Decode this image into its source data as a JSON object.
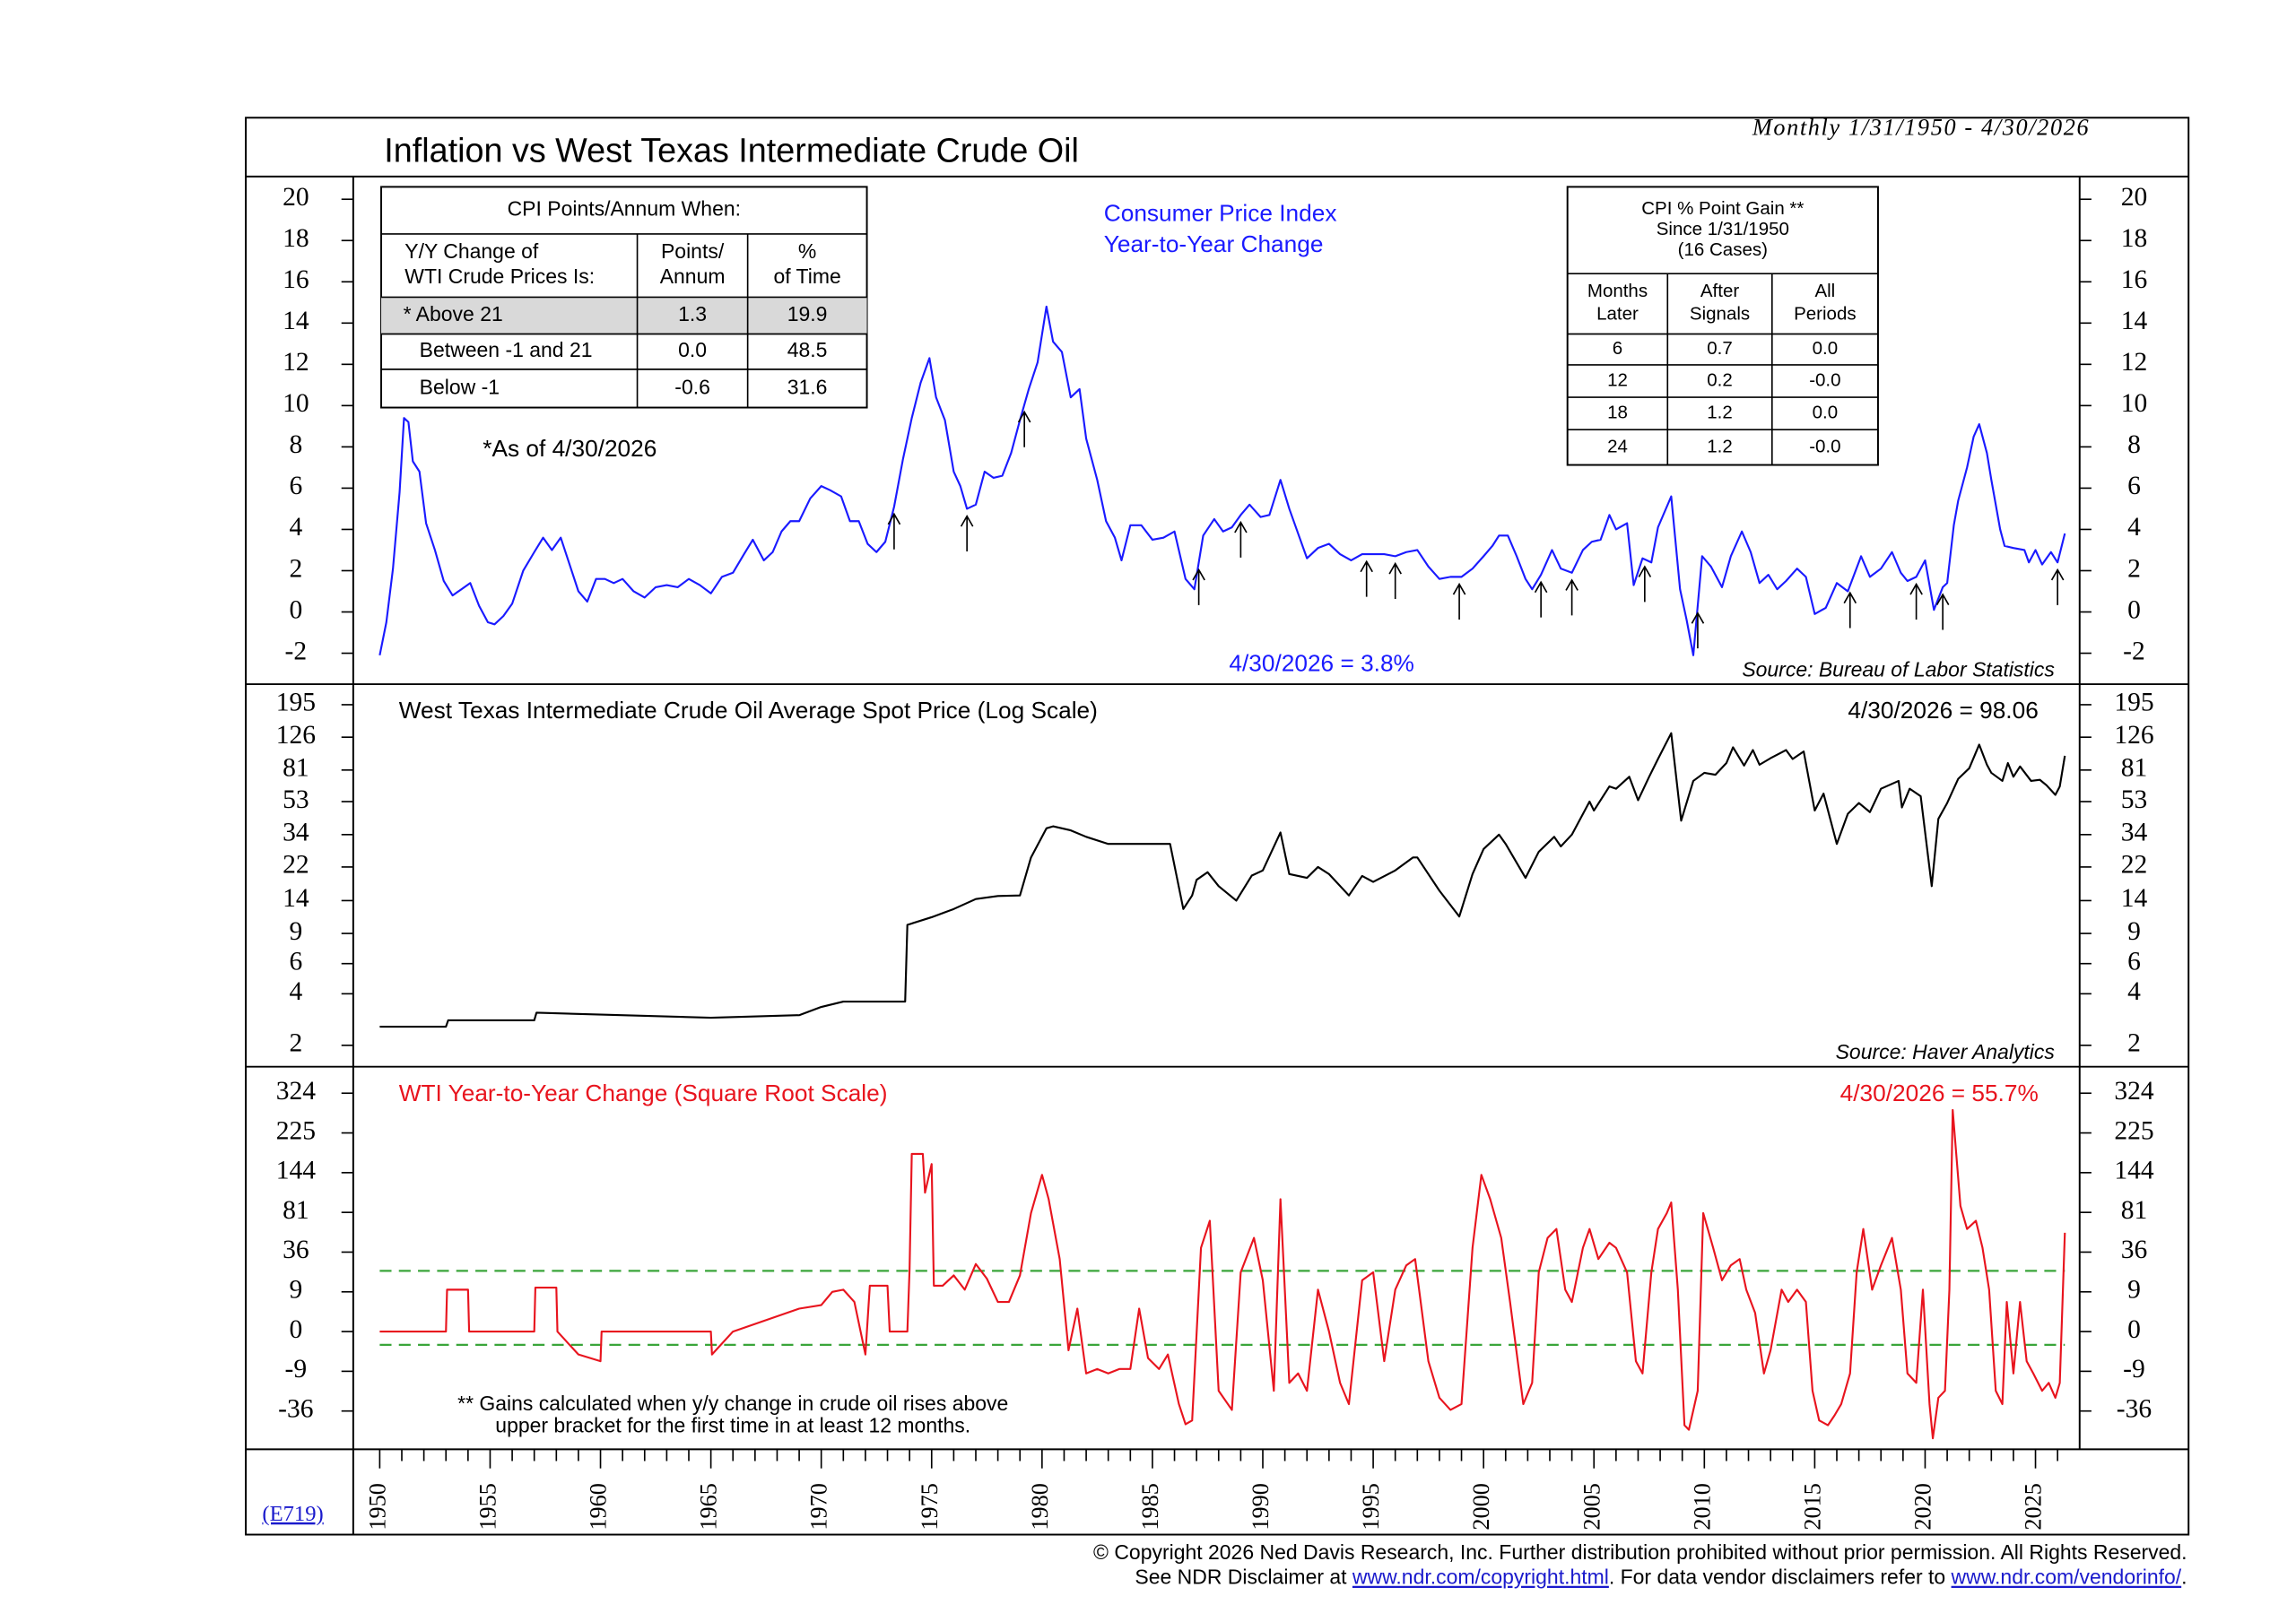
{
  "title": "Inflation vs West Texas Intermediate Crude Oil",
  "subtitle": "Monthly 1/31/1950 - 4/30/2026",
  "code": "(E719)",
  "copyright": "© Copyright 2026 Ned Davis Research, Inc.  Further distribution prohibited without prior permission.  All Rights Reserved.",
  "disclaimer": [
    "See NDR Disclaimer at ",
    "www.ndr.com/copyright.html",
    ". For data vendor disclaimers refer to ",
    "www.ndr.com/vendorinfo/",
    "."
  ],
  "tables": [
    {
      "title": [
        "CPI Points/Annum When:"
      ],
      "header": [
        [
          "Y/Y Change of",
          "WTI Crude Prices Is:"
        ],
        [
          "Points/",
          "Annum"
        ],
        [
          "%",
          "of Time"
        ]
      ],
      "rows": [
        [
          "* Above 21",
          "1.3",
          "19.9"
        ],
        [
          "Between -1 and 21",
          "0.0",
          "48.5"
        ],
        [
          "Below -1",
          "-0.6",
          "31.6"
        ]
      ],
      "highlight_row": 0
    },
    {
      "title": [
        "CPI % Point Gain **",
        "Since 1/31/1950",
        "(16 Cases)"
      ],
      "header": [
        [
          "Months",
          "Later"
        ],
        [
          "After",
          "Signals"
        ],
        [
          "All",
          "Periods"
        ]
      ],
      "rows": [
        [
          "6",
          "0.7",
          "0.0"
        ],
        [
          "12",
          "0.2",
          "-0.0"
        ],
        [
          "18",
          "1.2",
          "0.0"
        ],
        [
          "24",
          "1.2",
          "-0.0"
        ]
      ]
    }
  ],
  "chart_data": [
    {
      "type": "line",
      "scale": "linear",
      "title": [
        "Consumer Price Index",
        "Year-to-Year Change"
      ],
      "color": "#1a1aff",
      "note": "*As of 4/30/2026",
      "latest": "4/30/2026 = 3.8%",
      "source": "Source: Bureau of Labor Statistics",
      "xlim": [
        1948.8,
        2027
      ],
      "ylim": [
        -3.5,
        21.1
      ],
      "yticks": [
        -2,
        0,
        2,
        4,
        6,
        8,
        10,
        12,
        14,
        16,
        18,
        20
      ],
      "signals": [
        1973.3,
        1976.6,
        1979.2,
        1987.1,
        1989.0,
        1994.7,
        1996.0,
        1998.9,
        2002.6,
        2004.0,
        2007.3,
        2009.7,
        2016.6,
        2019.6,
        2020.8,
        2026.0
      ],
      "x": [
        1950,
        1950.3,
        1950.6,
        1950.9,
        1951.1,
        1951.3,
        1951.5,
        1951.8,
        1952.1,
        1952.5,
        1952.9,
        1953.3,
        1953.7,
        1954.1,
        1954.5,
        1954.9,
        1955.2,
        1955.6,
        1956,
        1956.5,
        1957,
        1957.4,
        1957.8,
        1958.2,
        1958.6,
        1959,
        1959.4,
        1959.8,
        1960.2,
        1960.6,
        1961,
        1961.5,
        1962,
        1962.5,
        1963,
        1963.5,
        1964,
        1964.5,
        1965,
        1965.5,
        1966,
        1966.5,
        1966.9,
        1967.4,
        1967.8,
        1968.2,
        1968.6,
        1969,
        1969.5,
        1970,
        1970.4,
        1970.9,
        1971.3,
        1971.7,
        1972.1,
        1972.5,
        1972.9,
        1973.3,
        1973.7,
        1974.1,
        1974.5,
        1974.9,
        1975.2,
        1975.6,
        1976,
        1976.3,
        1976.6,
        1977,
        1977.4,
        1977.8,
        1978.2,
        1978.6,
        1979,
        1979.4,
        1979.8,
        1980.2,
        1980.5,
        1980.9,
        1981.3,
        1981.7,
        1982,
        1982.5,
        1982.9,
        1983.3,
        1983.6,
        1984,
        1984.5,
        1985,
        1985.5,
        1986,
        1986.5,
        1986.9,
        1987.3,
        1987.8,
        1988.2,
        1988.6,
        1989,
        1989.4,
        1989.9,
        1990.3,
        1990.8,
        1991.2,
        1991.6,
        1992,
        1992.5,
        1993,
        1993.5,
        1994,
        1994.5,
        1995,
        1995.5,
        1996,
        1996.5,
        1997,
        1997.5,
        1998,
        1998.5,
        1999,
        1999.5,
        2000,
        2000.4,
        2000.7,
        2001.1,
        2001.5,
        2001.9,
        2002.2,
        2002.6,
        2003.1,
        2003.5,
        2004,
        2004.5,
        2004.9,
        2005.3,
        2005.7,
        2006,
        2006.5,
        2006.8,
        2007.2,
        2007.6,
        2007.9,
        2008.5,
        2008.9,
        2009.2,
        2009.5,
        2009.9,
        2010.3,
        2010.8,
        2011.2,
        2011.7,
        2012.1,
        2012.5,
        2012.9,
        2013.3,
        2013.7,
        2014.2,
        2014.6,
        2015,
        2015.5,
        2016,
        2016.5,
        2017.1,
        2017.5,
        2018,
        2018.5,
        2018.9,
        2019.2,
        2019.6,
        2020,
        2020.4,
        2020.8,
        2021,
        2021.3,
        2021.5,
        2021.9,
        2022.2,
        2022.45,
        2022.8,
        2023,
        2023.4,
        2023.6,
        2024,
        2024.5,
        2024.7,
        2025,
        2025.3,
        2025.7,
        2026,
        2026.33
      ],
      "values": [
        -2.1,
        -0.5,
        2.1,
        5.8,
        9.4,
        9.2,
        7.3,
        6.8,
        4.3,
        3.0,
        1.5,
        0.8,
        1.1,
        1.4,
        0.3,
        -0.5,
        -0.6,
        -0.2,
        0.4,
        2.0,
        2.9,
        3.6,
        3.0,
        3.6,
        2.3,
        1.0,
        0.5,
        1.6,
        1.6,
        1.4,
        1.6,
        1.0,
        0.7,
        1.2,
        1.3,
        1.2,
        1.6,
        1.3,
        0.9,
        1.7,
        1.9,
        2.8,
        3.5,
        2.5,
        2.9,
        3.9,
        4.4,
        4.4,
        5.5,
        6.1,
        5.9,
        5.6,
        4.4,
        4.4,
        3.3,
        2.9,
        3.4,
        5.1,
        7.4,
        9.4,
        11.1,
        12.3,
        10.4,
        9.3,
        6.8,
        6.1,
        5.0,
        5.2,
        6.8,
        6.5,
        6.6,
        7.7,
        9.3,
        10.8,
        12.1,
        14.8,
        13.1,
        12.6,
        10.4,
        10.8,
        8.4,
        6.4,
        4.4,
        3.6,
        2.5,
        4.2,
        4.2,
        3.5,
        3.6,
        3.9,
        1.6,
        1.1,
        3.7,
        4.5,
        3.9,
        4.1,
        4.7,
        5.2,
        4.6,
        4.7,
        6.4,
        5.0,
        3.8,
        2.6,
        3.1,
        3.3,
        2.8,
        2.5,
        2.8,
        2.8,
        2.8,
        2.7,
        2.9,
        3.0,
        2.2,
        1.6,
        1.7,
        1.7,
        2.1,
        2.7,
        3.2,
        3.7,
        3.7,
        2.7,
        1.6,
        1.1,
        1.8,
        3.0,
        2.1,
        1.9,
        3.0,
        3.4,
        3.5,
        4.7,
        4.0,
        4.3,
        1.3,
        2.6,
        2.4,
        4.1,
        5.6,
        1.1,
        -0.4,
        -2.1,
        2.7,
        2.2,
        1.2,
        2.7,
        3.9,
        2.9,
        1.4,
        1.8,
        1.1,
        1.5,
        2.1,
        1.7,
        -0.1,
        0.2,
        1.4,
        1.0,
        2.7,
        1.7,
        2.1,
        2.9,
        1.9,
        1.5,
        1.7,
        2.5,
        0.1,
        1.2,
        1.4,
        4.2,
        5.4,
        7.0,
        8.5,
        9.1,
        7.7,
        6.4,
        4.0,
        3.2,
        3.1,
        3.0,
        2.4,
        3.0,
        2.3,
        2.9,
        2.4,
        3.8
      ]
    },
    {
      "type": "line",
      "scale": "log",
      "title": [
        "West Texas Intermediate Crude Oil Average Spot Price (Log Scale)"
      ],
      "color": "#000000",
      "latest": "4/30/2026 = 98.06",
      "source": "Source: Haver Analytics",
      "xlim": [
        1948.8,
        2027
      ],
      "ylim": [
        1.5,
        257
      ],
      "yticks": [
        2,
        4,
        6,
        9,
        14,
        22,
        34,
        53,
        81,
        126,
        195
      ],
      "x": [
        1950,
        1953,
        1953.1,
        1957,
        1957.1,
        1965,
        1969,
        1970,
        1971,
        1973.8,
        1973.9,
        1975,
        1976,
        1977,
        1978,
        1979,
        1979.5,
        1980.2,
        1980.5,
        1981.3,
        1982,
        1983,
        1985.8,
        1986.4,
        1986.8,
        1987,
        1987.5,
        1988,
        1988.8,
        1989.5,
        1990,
        1990.8,
        1991.2,
        1992,
        1992.5,
        1993,
        1993.9,
        1994.5,
        1995,
        1996,
        1996.8,
        1997,
        1998,
        1998.9,
        1999.5,
        2000,
        2000.7,
        2001,
        2001.9,
        2002.5,
        2003.2,
        2003.5,
        2004,
        2004.8,
        2005,
        2005.7,
        2006,
        2006.6,
        2007,
        2007.5,
        2007.9,
        2008.5,
        2008.95,
        2009.5,
        2010,
        2010.5,
        2011,
        2011.3,
        2011.8,
        2012.2,
        2012.5,
        2013,
        2013.7,
        2014,
        2014.5,
        2015,
        2015.4,
        2016,
        2016.5,
        2017,
        2017.5,
        2018,
        2018.8,
        2018.95,
        2019.3,
        2019.8,
        2020.3,
        2020.6,
        2021,
        2021.5,
        2022,
        2022.45,
        2022.8,
        2023,
        2023.5,
        2023.75,
        2024,
        2024.3,
        2024.8,
        2025.2,
        2025.5,
        2025.9,
        2026.1,
        2026.33
      ],
      "values": [
        2.57,
        2.57,
        2.8,
        2.8,
        3.1,
        2.9,
        3.0,
        3.35,
        3.6,
        3.6,
        10.1,
        11.2,
        12.5,
        14.3,
        14.9,
        15,
        25,
        37,
        38,
        36,
        33,
        30,
        30,
        12.5,
        15,
        18.5,
        20.5,
        17,
        14,
        19.6,
        21,
        35,
        20,
        19,
        22,
        20,
        15,
        19.5,
        18,
        21,
        25,
        25,
        16,
        11.3,
        20,
        28,
        34,
        30,
        19,
        27,
        33,
        29,
        34,
        53,
        47,
        65,
        63,
        74,
        54,
        74,
        94,
        133,
        41,
        70,
        78,
        76,
        89,
        110,
        86,
        106,
        87,
        95,
        106,
        94,
        104,
        47,
        59,
        30,
        45,
        52,
        46,
        63,
        70,
        49,
        63,
        57,
        17,
        42,
        52,
        72,
        83,
        114,
        87,
        78,
        70,
        89,
        74,
        85,
        70,
        71,
        66,
        58,
        65,
        98.06
      ]
    },
    {
      "type": "line",
      "scale": "sqrt",
      "title": [
        "WTI Year-to-Year Change (Square Root Scale)"
      ],
      "color": "#e8141e",
      "latest": "4/30/2026 = 55.7%",
      "footnote": [
        "** Gains calculated when y/y change in crude oil rises above",
        "upper bracket for the first time in at least 12 months."
      ],
      "hlines": [
        21,
        -1
      ],
      "hline_color": "#3aa53a",
      "xlim": [
        1948.8,
        2027
      ],
      "ylim": [
        -79,
        400
      ],
      "yticks": [
        -36,
        -9,
        0,
        9,
        36,
        81,
        144,
        225,
        324
      ],
      "xticks": [
        1950,
        1955,
        1960,
        1965,
        1970,
        1975,
        1980,
        1985,
        1990,
        1995,
        2000,
        2005,
        2010,
        2015,
        2020,
        2025
      ],
      "x": [
        1950,
        1953,
        1953.05,
        1954,
        1954.05,
        1957,
        1957.05,
        1958,
        1958.05,
        1959,
        1960,
        1960.05,
        1965,
        1965.05,
        1966,
        1969,
        1970,
        1970.5,
        1971,
        1971.5,
        1972,
        1972.2,
        1973,
        1973.1,
        1973.9,
        1974.0,
        1974.1,
        1974.6,
        1974.7,
        1975,
        1975.1,
        1975.5,
        1976,
        1976.5,
        1977,
        1977.5,
        1978,
        1978.5,
        1979,
        1979.5,
        1980,
        1980.3,
        1980.8,
        1981.2,
        1981.6,
        1982,
        1982.5,
        1983,
        1983.5,
        1984,
        1984.4,
        1984.8,
        1985.3,
        1985.7,
        1986.2,
        1986.5,
        1986.8,
        1987.2,
        1987.6,
        1988,
        1988.6,
        1989,
        1989.6,
        1990,
        1990.5,
        1990.8,
        1991.2,
        1991.6,
        1992,
        1992.5,
        1993,
        1993.5,
        1993.9,
        1994.5,
        1995,
        1995.5,
        1996,
        1996.5,
        1996.9,
        1997.5,
        1998,
        1998.5,
        1999,
        1999.5,
        1999.9,
        2000.3,
        2000.8,
        2001.2,
        2001.8,
        2002.2,
        2002.5,
        2002.9,
        2003.3,
        2003.7,
        2004,
        2004.5,
        2004.8,
        2005.2,
        2005.7,
        2006,
        2006.5,
        2006.9,
        2007.2,
        2007.6,
        2007.9,
        2008.3,
        2008.5,
        2008.8,
        2009.1,
        2009.3,
        2009.7,
        2009.95,
        2010.4,
        2010.8,
        2011.2,
        2011.6,
        2011.9,
        2012.3,
        2012.7,
        2013,
        2013.5,
        2013.8,
        2014.2,
        2014.6,
        2014.9,
        2015.2,
        2015.6,
        2015.9,
        2016.2,
        2016.6,
        2016.9,
        2017.2,
        2017.6,
        2018,
        2018.5,
        2018.9,
        2019.2,
        2019.6,
        2019.9,
        2020.2,
        2020.35,
        2020.6,
        2020.9,
        2021.1,
        2021.25,
        2021.6,
        2021.9,
        2022.3,
        2022.6,
        2022.9,
        2023.2,
        2023.5,
        2023.7,
        2024,
        2024.3,
        2024.6,
        2024.9,
        2025.3,
        2025.6,
        2025.9,
        2026.1,
        2026.33
      ],
      "values": [
        0,
        0,
        10,
        10,
        0,
        0,
        11,
        11,
        0,
        -3,
        -5,
        0,
        0,
        -3,
        0,
        3,
        4,
        9,
        10,
        5,
        -3,
        12,
        12,
        0,
        0,
        22,
        180,
        180,
        110,
        160,
        12,
        12,
        18,
        10,
        26,
        16,
        5,
        5,
        18,
        80,
        140,
        100,
        30,
        -2,
        3,
        -10,
        -8,
        -10,
        -8,
        -8,
        3,
        -4,
        -8,
        -3,
        -30,
        -49,
        -45,
        40,
        70,
        -20,
        -35,
        20,
        50,
        15,
        -20,
        100,
        -15,
        -10,
        -20,
        10,
        0,
        -15,
        -30,
        15,
        20,
        -5,
        10,
        25,
        30,
        -5,
        -25,
        -35,
        -30,
        40,
        140,
        100,
        50,
        5,
        -30,
        -15,
        20,
        50,
        60,
        10,
        5,
        40,
        60,
        30,
        45,
        40,
        20,
        -5,
        -10,
        20,
        60,
        80,
        95,
        10,
        -50,
        -55,
        -20,
        80,
        40,
        15,
        25,
        30,
        10,
        2,
        -10,
        -2,
        10,
        5,
        10,
        5,
        -20,
        -45,
        -50,
        -40,
        -30,
        -10,
        20,
        60,
        10,
        25,
        50,
        10,
        -10,
        -15,
        10,
        -30,
        -65,
        -25,
        -20,
        10,
        280,
        90,
        60,
        70,
        40,
        10,
        -20,
        -30,
        5,
        -10,
        5,
        -5,
        -10,
        -20,
        -15,
        -25,
        -15,
        55.7
      ]
    }
  ]
}
